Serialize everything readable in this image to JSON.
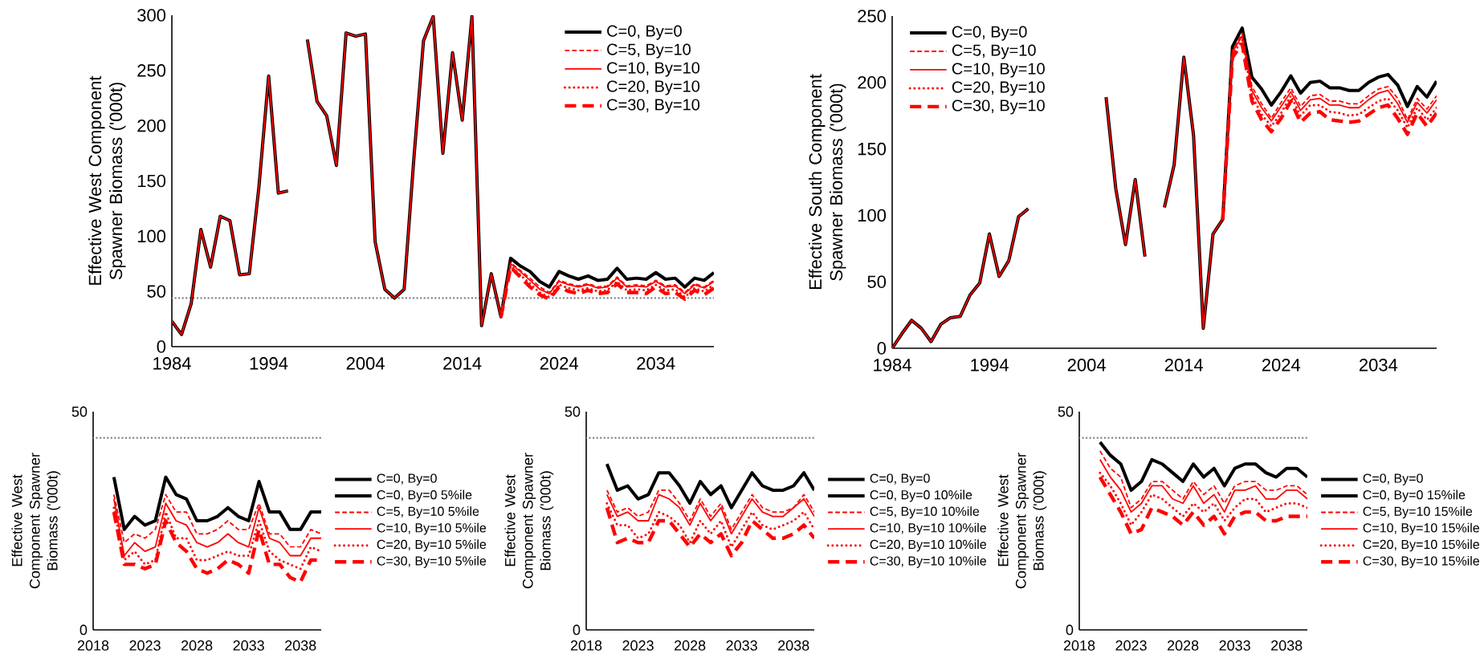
{
  "chart_data": [
    {
      "type": "line",
      "ylabel": "Effective West Component Spawner Biomass ('000t)",
      "legend": "top right",
      "x": [
        1984,
        1985,
        1986,
        1987,
        1988,
        1989,
        1990,
        1991,
        1992,
        1993,
        1994,
        1995,
        1996,
        1997,
        1998,
        1999,
        2000,
        2001,
        2002,
        2003,
        2004,
        2005,
        2006,
        2007,
        2008,
        2009,
        2010,
        2011,
        2012,
        2013,
        2014,
        2015,
        2016,
        2017,
        2018,
        2019,
        2020,
        2021,
        2022,
        2023,
        2024,
        2025,
        2026,
        2027,
        2028,
        2029,
        2030,
        2031,
        2032,
        2033,
        2034,
        2035,
        2036,
        2037,
        2038,
        2039,
        2040
      ],
      "xlim": [
        1984,
        2040
      ],
      "xticks": [
        1984,
        1994,
        2004,
        2014,
        2024,
        2034
      ],
      "ylim": [
        0,
        300
      ],
      "yticks": [
        0,
        50,
        100,
        150,
        200,
        250,
        300
      ],
      "ref_lines": [
        {
          "axis": "y",
          "value": 44,
          "color": "#808080",
          "line_style": "dotted"
        }
      ],
      "series": [
        {
          "name": "C=0, By=0",
          "color": "#000000",
          "line_style": "solid",
          "values": [
            23,
            11,
            39,
            106,
            72,
            118,
            114,
            65,
            66,
            145,
            245,
            139,
            141,
            null,
            278,
            222,
            209,
            164,
            284,
            281,
            283,
            95,
            52,
            44,
            52,
            170,
            277,
            299,
            175,
            266,
            205,
            299,
            19,
            66,
            27,
            80,
            73,
            68,
            59,
            54,
            68,
            64,
            61,
            64,
            60,
            61,
            71,
            61,
            62,
            61,
            67,
            61,
            62,
            54,
            62,
            60,
            67
          ]
        },
        {
          "name": "C=5, By=10",
          "color": "#ff0000",
          "line_style": "dashed",
          "values": [
            null,
            null,
            null,
            null,
            null,
            null,
            null,
            null,
            null,
            null,
            null,
            null,
            null,
            null,
            null,
            null,
            null,
            null,
            null,
            null,
            null,
            null,
            null,
            null,
            null,
            null,
            null,
            null,
            null,
            null,
            null,
            null,
            null,
            null,
            27,
            76,
            69,
            62,
            54,
            49,
            60,
            57,
            55,
            57,
            54,
            55,
            63,
            55,
            56,
            55,
            60,
            55,
            56,
            49,
            57,
            54,
            60
          ]
        },
        {
          "name": "C=10, By=10",
          "color": "#ff0000",
          "line_style": "solid",
          "values": [
            23,
            11,
            39,
            106,
            72,
            118,
            114,
            65,
            66,
            145,
            245,
            139,
            141,
            null,
            278,
            222,
            209,
            164,
            284,
            281,
            283,
            95,
            52,
            44,
            52,
            170,
            277,
            299,
            175,
            266,
            205,
            299,
            19,
            66,
            27,
            75,
            68,
            60,
            52,
            48,
            59,
            56,
            54,
            56,
            53,
            54,
            62,
            54,
            55,
            54,
            59,
            54,
            55,
            48,
            56,
            53,
            59
          ]
        },
        {
          "name": "C=20, By=10",
          "color": "#ff0000",
          "line_style": "dotted",
          "values": [
            null,
            null,
            null,
            null,
            null,
            null,
            null,
            null,
            null,
            null,
            null,
            null,
            null,
            null,
            null,
            null,
            null,
            null,
            null,
            null,
            null,
            null,
            null,
            null,
            null,
            null,
            null,
            null,
            null,
            null,
            null,
            null,
            null,
            null,
            27,
            73,
            65,
            57,
            49,
            45,
            56,
            53,
            51,
            53,
            50,
            51,
            59,
            51,
            52,
            51,
            56,
            51,
            52,
            45,
            53,
            50,
            56
          ]
        },
        {
          "name": "C=30, By=10",
          "color": "#ff0000",
          "line_style": "dashed",
          "values": [
            null,
            null,
            null,
            null,
            null,
            null,
            null,
            null,
            null,
            null,
            null,
            null,
            null,
            null,
            null,
            null,
            null,
            null,
            null,
            null,
            null,
            null,
            null,
            null,
            null,
            null,
            null,
            null,
            null,
            null,
            null,
            null,
            null,
            null,
            27,
            72,
            63,
            54,
            47,
            43,
            54,
            50,
            48,
            51,
            48,
            49,
            57,
            49,
            49,
            48,
            54,
            48,
            49,
            43,
            51,
            47,
            53
          ]
        }
      ]
    },
    {
      "type": "line",
      "ylabel": "Effective South Component Spawner Biomass ('000t)",
      "legend": "top left",
      "x": [
        1984,
        1985,
        1986,
        1987,
        1988,
        1989,
        1990,
        1991,
        1992,
        1993,
        1994,
        1995,
        1996,
        1997,
        1998,
        1999,
        2000,
        2001,
        2002,
        2003,
        2004,
        2005,
        2006,
        2007,
        2008,
        2009,
        2010,
        2011,
        2012,
        2013,
        2014,
        2015,
        2016,
        2017,
        2018,
        2019,
        2020,
        2021,
        2022,
        2023,
        2024,
        2025,
        2026,
        2027,
        2028,
        2029,
        2030,
        2031,
        2032,
        2033,
        2034,
        2035,
        2036,
        2037,
        2038,
        2039,
        2040
      ],
      "xlim": [
        1984,
        2040
      ],
      "xticks": [
        1984,
        1994,
        2004,
        2014,
        2024,
        2034
      ],
      "ylim": [
        0,
        250
      ],
      "yticks": [
        0,
        50,
        100,
        150,
        200,
        250
      ],
      "series": [
        {
          "name": "C=0, By=0",
          "color": "#000000",
          "line_style": "solid",
          "values": [
            0,
            11,
            21,
            15,
            5,
            18,
            23,
            24,
            40,
            49,
            86,
            54,
            66,
            99,
            105,
            null,
            null,
            null,
            null,
            null,
            null,
            null,
            189,
            120,
            78,
            127,
            69,
            null,
            106,
            138,
            219,
            160,
            15,
            86,
            97,
            227,
            241,
            204,
            195,
            183,
            193,
            205,
            192,
            200,
            201,
            196,
            196,
            194,
            194,
            200,
            204,
            206,
            198,
            182,
            197,
            189,
            201
          ]
        },
        {
          "name": "C=5, By=10",
          "color": "#ff0000",
          "line_style": "dashed",
          "values": [
            null,
            null,
            null,
            null,
            null,
            null,
            null,
            null,
            null,
            null,
            null,
            null,
            null,
            null,
            null,
            null,
            null,
            null,
            null,
            null,
            null,
            null,
            null,
            null,
            null,
            null,
            null,
            null,
            null,
            null,
            null,
            null,
            null,
            null,
            97,
            224,
            237,
            197,
            184,
            173,
            185,
            196,
            182,
            190,
            191,
            186,
            186,
            184,
            184,
            190,
            195,
            197,
            188,
            172,
            188,
            180,
            190
          ]
        },
        {
          "name": "C=10, By=10",
          "color": "#ff0000",
          "line_style": "solid",
          "values": [
            0,
            11,
            21,
            15,
            5,
            18,
            23,
            24,
            40,
            49,
            86,
            54,
            66,
            99,
            105,
            null,
            null,
            null,
            null,
            null,
            null,
            null,
            189,
            120,
            78,
            127,
            69,
            null,
            106,
            138,
            219,
            160,
            15,
            86,
            97,
            223,
            235,
            194,
            181,
            171,
            182,
            193,
            179,
            187,
            188,
            183,
            183,
            181,
            181,
            187,
            192,
            194,
            184,
            170,
            185,
            177,
            187
          ]
        },
        {
          "name": "C=20, By=10",
          "color": "#ff0000",
          "line_style": "dotted",
          "values": [
            null,
            null,
            null,
            null,
            null,
            null,
            null,
            null,
            null,
            null,
            null,
            null,
            null,
            null,
            null,
            null,
            null,
            null,
            null,
            null,
            null,
            null,
            null,
            null,
            null,
            null,
            null,
            null,
            null,
            null,
            null,
            null,
            null,
            null,
            97,
            221,
            232,
            190,
            176,
            167,
            177,
            190,
            175,
            183,
            183,
            178,
            177,
            175,
            176,
            181,
            186,
            188,
            179,
            166,
            181,
            172,
            181
          ]
        },
        {
          "name": "C=30, By=10",
          "color": "#ff0000",
          "line_style": "dashed",
          "values": [
            null,
            null,
            null,
            null,
            null,
            null,
            null,
            null,
            null,
            null,
            null,
            null,
            null,
            null,
            null,
            null,
            null,
            null,
            null,
            null,
            null,
            null,
            null,
            null,
            null,
            null,
            null,
            null,
            null,
            null,
            null,
            null,
            null,
            null,
            97,
            219,
            229,
            186,
            172,
            163,
            173,
            186,
            170,
            177,
            178,
            172,
            171,
            170,
            171,
            176,
            181,
            183,
            173,
            161,
            177,
            167,
            177
          ]
        }
      ]
    },
    {
      "type": "line",
      "ylabel": "Effective West Component Spawner Biomass ('000t)",
      "legend": "right",
      "x": [
        2020,
        2021,
        2022,
        2023,
        2024,
        2025,
        2026,
        2027,
        2028,
        2029,
        2030,
        2031,
        2032,
        2033,
        2034,
        2035,
        2036,
        2037,
        2038,
        2039,
        2040
      ],
      "xlim": [
        2018,
        2040
      ],
      "xticks": [
        2018,
        2023,
        2028,
        2033,
        2038
      ],
      "ylim": [
        0,
        50
      ],
      "yticks": [
        0,
        50
      ],
      "ref_lines": [
        {
          "axis": "y",
          "value": 44,
          "color": "#808080",
          "line_style": "dotted"
        }
      ],
      "series": [
        {
          "name": "C=0, By=0",
          "color": "#000000",
          "line_style": "solid",
          "values": [
            null,
            null,
            null,
            null,
            null,
            null,
            null,
            null,
            null,
            null,
            null,
            null,
            null,
            null,
            null,
            null,
            null,
            null,
            null,
            null,
            null
          ]
        },
        {
          "name": "C=0, By=0 5%ile",
          "color": "#000000",
          "line_style": "solid",
          "values": [
            35,
            23,
            26,
            24,
            25,
            35,
            31,
            30,
            25,
            25,
            26,
            28,
            26,
            25,
            34,
            27,
            27,
            23,
            23,
            27,
            27
          ]
        },
        {
          "name": "C=5, By=10 5%ile",
          "color": "#ff0000",
          "line_style": "dashed",
          "values": [
            31,
            20,
            22,
            21,
            23,
            31,
            27,
            27,
            22,
            22,
            23,
            25,
            23,
            23,
            29,
            22,
            22,
            19,
            19,
            23,
            22
          ]
        },
        {
          "name": "C=10, By=10 5%ile",
          "color": "#ff0000",
          "line_style": "solid",
          "values": [
            30,
            17,
            20,
            18,
            19,
            29,
            25,
            24,
            20,
            19,
            20,
            22,
            20,
            19,
            28,
            21,
            20,
            17,
            17,
            21,
            21
          ]
        },
        {
          "name": "C=20, By=10 5%ile",
          "color": "#ff0000",
          "line_style": "dotted",
          "values": [
            28,
            16,
            18,
            15,
            16,
            27,
            21,
            21,
            16,
            16,
            17,
            18,
            17,
            17,
            25,
            18,
            16,
            15,
            14,
            19,
            18
          ]
        },
        {
          "name": "C=30, By=10 5%ile",
          "color": "#ff0000",
          "line_style": "dashed",
          "values": [
            27,
            15,
            15,
            14,
            15,
            25,
            20,
            18,
            14,
            13,
            14,
            16,
            15,
            13,
            23,
            15,
            15,
            12,
            11,
            16,
            16
          ]
        }
      ]
    },
    {
      "type": "line",
      "ylabel": "Effective West Component Spawner Biomass ('000t)",
      "legend": "right",
      "x": [
        2020,
        2021,
        2022,
        2023,
        2024,
        2025,
        2026,
        2027,
        2028,
        2029,
        2030,
        2031,
        2032,
        2033,
        2034,
        2035,
        2036,
        2037,
        2038,
        2039,
        2040
      ],
      "xlim": [
        2018,
        2040
      ],
      "xticks": [
        2018,
        2023,
        2028,
        2033,
        2038
      ],
      "ylim": [
        0,
        50
      ],
      "yticks": [
        0,
        50
      ],
      "ref_lines": [
        {
          "axis": "y",
          "value": 44,
          "color": "#808080",
          "line_style": "dotted"
        }
      ],
      "series": [
        {
          "name": "C=0, By=0",
          "color": "#000000",
          "line_style": "solid",
          "values": [
            null,
            null,
            null,
            null,
            null,
            null,
            null,
            null,
            null,
            null,
            null,
            null,
            null,
            null,
            null,
            null,
            null,
            null,
            null,
            null,
            null
          ]
        },
        {
          "name": "C=0, By=0 10%ile",
          "color": "#000000",
          "line_style": "solid",
          "values": [
            38,
            32,
            33,
            30,
            31,
            36,
            36,
            33,
            29,
            34,
            31,
            33,
            28,
            32,
            36,
            33,
            32,
            32,
            33,
            36,
            32
          ]
        },
        {
          "name": "C=5, By=10 10%ile",
          "color": "#ff0000",
          "line_style": "dashed",
          "values": [
            32,
            27,
            28,
            26,
            27,
            32,
            32,
            29,
            25,
            30,
            26,
            29,
            23,
            27,
            31,
            28,
            27,
            27,
            28,
            31,
            27
          ]
        },
        {
          "name": "C=10, By=10 10%ile",
          "color": "#ff0000",
          "line_style": "solid",
          "values": [
            31,
            26,
            27,
            25,
            25,
            31,
            30,
            28,
            24,
            29,
            25,
            28,
            22,
            26,
            30,
            27,
            26,
            26,
            28,
            30,
            26
          ]
        },
        {
          "name": "C=20, By=10 10%ile",
          "color": "#ff0000",
          "line_style": "dotted",
          "values": [
            29,
            24,
            24,
            21,
            22,
            27,
            26,
            24,
            20,
            25,
            22,
            25,
            19,
            23,
            27,
            24,
            23,
            24,
            25,
            27,
            23
          ]
        },
        {
          "name": "C=30, By=10 10%ile",
          "color": "#ff0000",
          "line_style": "dashed",
          "values": [
            28,
            20,
            21,
            20,
            20,
            25,
            25,
            22,
            19,
            22,
            20,
            22,
            17,
            20,
            25,
            23,
            21,
            21,
            22,
            24,
            21
          ]
        }
      ]
    },
    {
      "type": "line",
      "ylabel": "Effective West Component Spawner Biomass ('000t)",
      "legend": "right",
      "x": [
        2020,
        2021,
        2022,
        2023,
        2024,
        2025,
        2026,
        2027,
        2028,
        2029,
        2030,
        2031,
        2032,
        2033,
        2034,
        2035,
        2036,
        2037,
        2038,
        2039,
        2040
      ],
      "xlim": [
        2018,
        2040
      ],
      "xticks": [
        2018,
        2023,
        2028,
        2033,
        2038
      ],
      "ylim": [
        0,
        50
      ],
      "yticks": [
        0,
        50
      ],
      "ref_lines": [
        {
          "axis": "y",
          "value": 44,
          "color": "#808080",
          "line_style": "dotted"
        }
      ],
      "series": [
        {
          "name": "C=0, By=0",
          "color": "#000000",
          "line_style": "solid",
          "values": [
            null,
            null,
            null,
            null,
            null,
            null,
            null,
            null,
            null,
            null,
            null,
            null,
            null,
            null,
            null,
            null,
            null,
            null,
            null,
            null,
            null
          ]
        },
        {
          "name": "C=0, By=0 15%ile",
          "color": "#000000",
          "line_style": "solid",
          "values": [
            43,
            40,
            38,
            32,
            34,
            39,
            38,
            36,
            34,
            38,
            35,
            37,
            33,
            37,
            38,
            38,
            36,
            35,
            37,
            37,
            35
          ]
        },
        {
          "name": "C=5, By=10 15%ile",
          "color": "#ff0000",
          "line_style": "dashed",
          "values": [
            41,
            37,
            35,
            28,
            30,
            34,
            34,
            32,
            30,
            34,
            31,
            33,
            29,
            33,
            34,
            34,
            32,
            32,
            33,
            33,
            31
          ]
        },
        {
          "name": "C=10, By=10 15%ile",
          "color": "#ff0000",
          "line_style": "solid",
          "values": [
            39,
            35,
            32,
            27,
            29,
            33,
            33,
            30,
            29,
            33,
            29,
            31,
            27,
            32,
            32,
            33,
            30,
            30,
            32,
            32,
            30
          ]
        },
        {
          "name": "C=20, By=10 15%ile",
          "color": "#ff0000",
          "line_style": "dotted",
          "values": [
            36,
            33,
            29,
            24,
            27,
            31,
            30,
            28,
            26,
            29,
            27,
            29,
            25,
            28,
            30,
            30,
            27,
            28,
            29,
            29,
            28
          ]
        },
        {
          "name": "C=30, By=10 15%ile",
          "color": "#ff0000",
          "line_style": "dashed",
          "values": [
            35,
            31,
            27,
            22,
            23,
            28,
            27,
            26,
            24,
            27,
            24,
            26,
            22,
            26,
            27,
            27,
            25,
            25,
            26,
            26,
            26
          ]
        }
      ]
    }
  ]
}
